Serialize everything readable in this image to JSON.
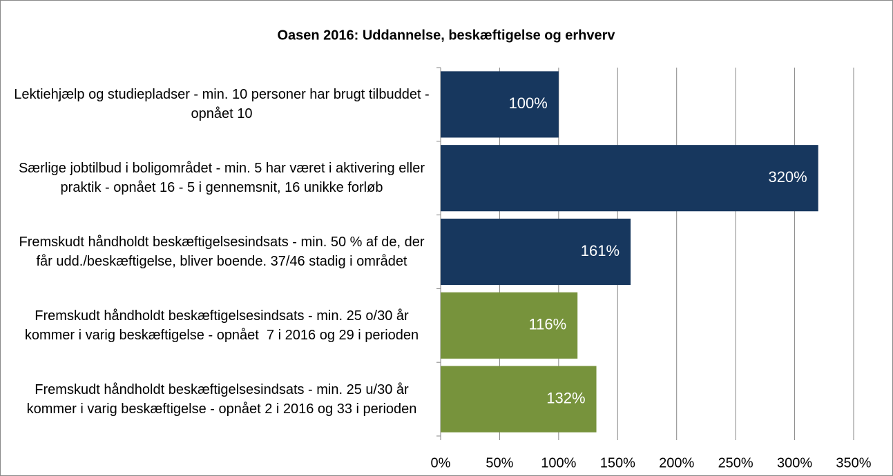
{
  "chart_data": {
    "type": "barh",
    "title": "Oasen 2016: Uddannelse, beskæftigelse og erhverv",
    "categories": [
      "Lektiehjælp og studiepladser - min. 10 personer har brugt tilbuddet - opnået 10",
      "Særlige jobtilbud i boligområdet - min. 5 har været i aktivering eller praktik - opnået 16 - 5 i gennemsnit, 16 unikke forløb",
      "Fremskudt håndholdt beskæftigelsesindsats - min. 50 % af de, der får udd./beskæftigelse, bliver boende. 37/46 stadig i området",
      "Fremskudt håndholdt beskæftigelsesindsats - min. 25 o/30 år kommer i varig beskæftigelse - opnået  7 i 2016 og 29 i perioden",
      "Fremskudt håndholdt beskæftigelsesindsats - min. 25 u/30 år kommer i varig beskæftigelse - opnået 2 i 2016 og 33 i perioden"
    ],
    "values": [
      100,
      320,
      161,
      116,
      132
    ],
    "value_labels": [
      "100%",
      "320%",
      "161%",
      "116%",
      "132%"
    ],
    "colors": [
      "#17375e",
      "#17375e",
      "#17375e",
      "#77933c",
      "#77933c"
    ],
    "xlim": [
      0,
      350
    ],
    "xticks": [
      {
        "value": 0,
        "label": "0%"
      },
      {
        "value": 50,
        "label": "50%"
      },
      {
        "value": 100,
        "label": "100%"
      },
      {
        "value": 150,
        "label": "150%"
      },
      {
        "value": 200,
        "label": "200%"
      },
      {
        "value": 250,
        "label": "250%"
      },
      {
        "value": 300,
        "label": "300%"
      },
      {
        "value": 350,
        "label": "350%"
      }
    ],
    "grid": true
  }
}
